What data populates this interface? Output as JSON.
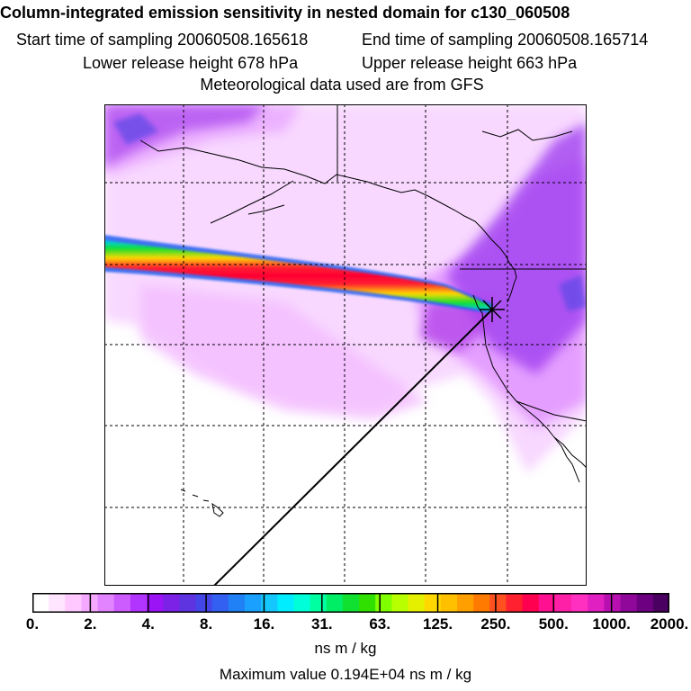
{
  "header": {
    "title": "Column-integrated emission sensitivity in nested domain for c130_060508",
    "start_time": "Start time of sampling 20060508.165618",
    "end_time": "End time of sampling 20060508.165714",
    "lower_release": "Lower release height  678 hPa",
    "upper_release": "Upper release height  663 hPa",
    "met_data": "Meteorological data used are from GFS"
  },
  "colorbar": {
    "tick_labels": [
      "0.",
      "2.",
      "4.",
      "8.",
      "16.",
      "31.",
      "63.",
      "125.",
      "250.",
      "500.",
      "1000.",
      "2000."
    ],
    "colors": [
      "#ffffff",
      "#ffe5ff",
      "#ffc8ff",
      "#f5a8ff",
      "#e283ff",
      "#cc5cff",
      "#b234ff",
      "#9b14f5",
      "#7c22e6",
      "#5e33e0",
      "#4446e8",
      "#3360f0",
      "#2080f5",
      "#1aa0ff",
      "#14c8ff",
      "#00ecff",
      "#00ffd8",
      "#00ffa0",
      "#00ee66",
      "#10e030",
      "#30e000",
      "#80ff00",
      "#b8ff00",
      "#e4f000",
      "#ffd800",
      "#ffc000",
      "#ffa000",
      "#ff7a00",
      "#ff5020",
      "#ff2030",
      "#ff0050",
      "#ff1090",
      "#ff20a8",
      "#ff30c0",
      "#e020c0",
      "#b810b0",
      "#90089a",
      "#6c0080",
      "#4a0060"
    ],
    "units": "ns m / kg",
    "max_value": "Maximum value  0.194E+04 ns m / kg"
  },
  "chart_data": {
    "type": "heatmap",
    "title": "Column-integrated emission sensitivity in nested domain for c130_060508",
    "colorscale_labels": [
      "0.",
      "2.",
      "4.",
      "8.",
      "16.",
      "31.",
      "63.",
      "125.",
      "250.",
      "500.",
      "1000.",
      "2000."
    ],
    "units": "ns m / kg",
    "maximum_value": 1940,
    "receptor_symbol": "x",
    "plume": "band of high sensitivity extending west from the receptor",
    "grid": true
  }
}
